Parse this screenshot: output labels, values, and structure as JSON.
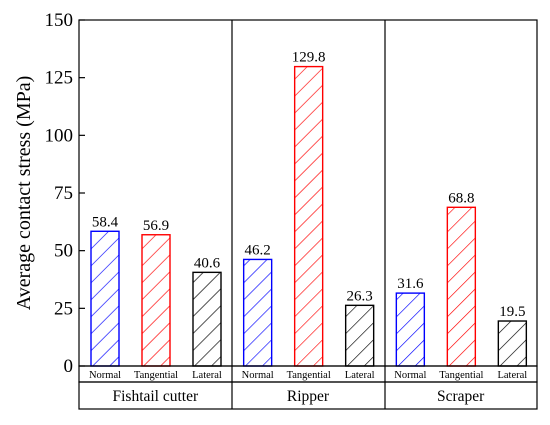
{
  "chart_data": {
    "type": "bar",
    "ylabel": "Average contact stress (MPa)",
    "xlabel": "",
    "title": "",
    "ylim": [
      0,
      150
    ],
    "yticks": [
      "0",
      "25",
      "50",
      "75",
      "100",
      "125",
      "150"
    ],
    "grid": false,
    "legend": "none",
    "hatch": "diagonal",
    "groups": [
      {
        "name": "Fishtail cutter",
        "bars": [
          {
            "category": "Normal",
            "value": 58.4,
            "label": "58.4",
            "color": "#0000ff"
          },
          {
            "category": "Tangential",
            "value": 56.9,
            "label": "56.9",
            "color": "#ff0000"
          },
          {
            "category": "Lateral",
            "value": 40.6,
            "label": "40.6",
            "color": "#000000"
          }
        ]
      },
      {
        "name": "Ripper",
        "bars": [
          {
            "category": "Normal",
            "value": 46.2,
            "label": "46.2",
            "color": "#0000ff"
          },
          {
            "category": "Tangential",
            "value": 129.8,
            "label": "129.8",
            "color": "#ff0000"
          },
          {
            "category": "Lateral",
            "value": 26.3,
            "label": "26.3",
            "color": "#000000"
          }
        ]
      },
      {
        "name": "Scraper",
        "bars": [
          {
            "category": "Normal",
            "value": 31.6,
            "label": "31.6",
            "color": "#0000ff"
          },
          {
            "category": "Tangential",
            "value": 68.8,
            "label": "68.8",
            "color": "#ff0000"
          },
          {
            "category": "Lateral",
            "value": 19.5,
            "label": "19.5",
            "color": "#000000"
          }
        ]
      }
    ]
  }
}
